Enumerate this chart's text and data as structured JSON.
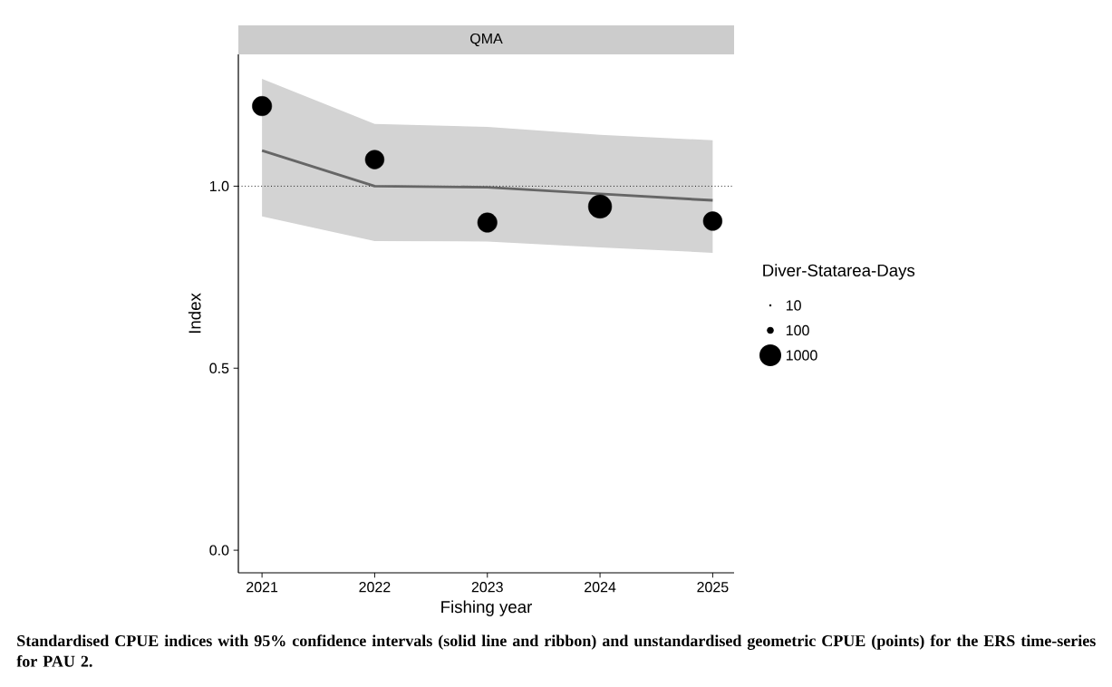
{
  "chart_data": {
    "type": "line",
    "title": "QMA",
    "xlabel": "Fishing year",
    "ylabel": "Index",
    "legend_title": "Diver-Statarea-Days",
    "x": [
      2021,
      2022,
      2023,
      2024,
      2025
    ],
    "series": [
      {
        "color": "#666666",
        "values": [
          1.098,
          1.0,
          0.997,
          0.979,
          0.961
        ],
        "lower": [
          0.917,
          0.849,
          0.848,
          0.832,
          0.817
        ],
        "upper": [
          1.295,
          1.171,
          1.163,
          1.141,
          1.126
        ]
      },
      {
        "type": "bubble",
        "color": "#000000",
        "marker": "circle",
        "values": [
          1.22,
          1.073,
          0.9,
          0.944,
          0.904
        ],
        "sizes": [
          800,
          750,
          800,
          1150,
          750
        ]
      }
    ],
    "size_legend": [
      10,
      100,
      1000
    ],
    "grid": false,
    "ref_lines": [
      {
        "axis": "y",
        "value": 1.0,
        "line_style": "dotted",
        "color": "#000000"
      }
    ],
    "xlim": [
      2020.79,
      2025.19
    ],
    "ylim": [
      -0.062,
      1.362
    ],
    "xticks": [
      2021,
      2022,
      2023,
      2024,
      2025
    ],
    "yticks": [
      {
        "value": 0.0,
        "label": "0.0"
      },
      {
        "value": 0.5,
        "label": "0.5"
      },
      {
        "value": 1.0,
        "label": "1.0"
      }
    ],
    "annotations": [
      "Standardised CPUE indices with 95% confidence intervals (solid line and ribbon) and unstandardised geometric CPUE (points) for the ERS time-series for PAU 2."
    ]
  }
}
